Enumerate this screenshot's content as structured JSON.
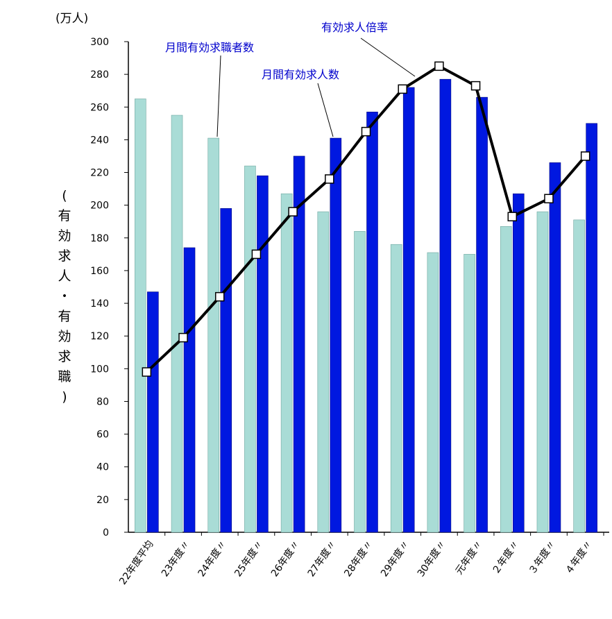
{
  "chart_data": {
    "type": "bar+line",
    "unit_label": "(万人)",
    "ylabel": [
      "(",
      "有",
      "効",
      "求",
      "人",
      "・",
      "有",
      "効",
      "求",
      "職",
      ")"
    ],
    "ylim": [
      0,
      300
    ],
    "yticks": [
      0,
      20,
      40,
      60,
      80,
      100,
      120,
      140,
      160,
      180,
      200,
      220,
      240,
      260,
      280,
      300
    ],
    "categories": [
      "22年度平均",
      "23年度〃",
      "24年度〃",
      "25年度〃",
      "26年度〃",
      "27年度〃",
      "28年度〃",
      "29年度〃",
      "30年度〃",
      "元年度〃",
      "２年度〃",
      "３年度〃",
      "４年度〃"
    ],
    "series": [
      {
        "name": "月間有効求職者数",
        "kind": "bar",
        "color": "#a9dcd6",
        "values": [
          265,
          255,
          241,
          224,
          207,
          196,
          184,
          176,
          171,
          170,
          187,
          196,
          191
        ]
      },
      {
        "name": "月間有効求人数",
        "kind": "bar",
        "color": "#0018e0",
        "values": [
          147,
          174,
          198,
          218,
          230,
          241,
          257,
          272,
          277,
          266,
          207,
          226,
          250
        ]
      },
      {
        "name": "有効求人倍率",
        "kind": "line",
        "color": "#000000",
        "values": [
          98,
          119,
          144,
          170,
          196,
          216,
          245,
          271,
          285,
          273,
          193,
          204,
          230
        ]
      }
    ],
    "annotations": [
      {
        "text": "月間有効求職者数",
        "series": 0
      },
      {
        "text": "月間有効求人数",
        "series": 1
      },
      {
        "text": "有効求人倍率",
        "series": 2
      }
    ]
  }
}
